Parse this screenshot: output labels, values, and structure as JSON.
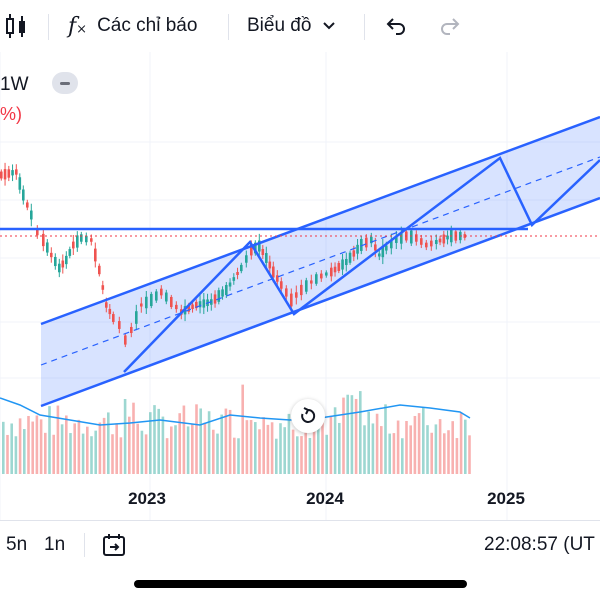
{
  "toolbar": {
    "indicators_label": "Các chỉ báo",
    "chart_type_label": "Biểu đồ"
  },
  "symbol": {
    "interval_fragment": "1W",
    "change_fragment": "%)"
  },
  "x_axis": {
    "years": [
      "2023",
      "2024",
      "2025"
    ]
  },
  "bottom_bar": {
    "range_5y": "5n",
    "range_1y": "1n",
    "clock": "22:08:57 (UT"
  },
  "colors": {
    "up": "#26a69a",
    "down": "#ef5350",
    "drawing": "#2962ff",
    "channel_fill": "#2962ff",
    "volume_ma": "#2196f3",
    "price_line": "#f23645"
  },
  "chart_data": {
    "type": "candlestick",
    "x_ticks": [
      "2023",
      "2024",
      "2025"
    ],
    "drawings": [
      "parallel channel",
      "horizontal line",
      "zigzag pattern"
    ],
    "volume_pane": true
  }
}
